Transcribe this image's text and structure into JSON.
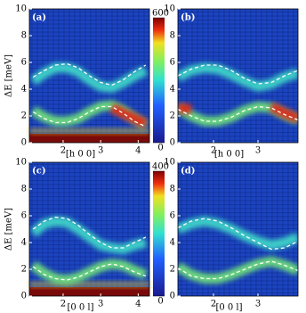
{
  "chart_data": [
    {
      "type": "line",
      "label": "(a)",
      "xlabel": "[h 0 0]",
      "ylabel": "ΔE [meV]",
      "xlim": [
        1.1,
        4.3
      ],
      "xticks": [
        2,
        3,
        4
      ],
      "ylim": [
        0,
        10
      ],
      "yticks": [
        0,
        2,
        4,
        6,
        8,
        10
      ],
      "elastic": true,
      "colorbar": {
        "lim": [
          0,
          600
        ],
        "ticks": [
          0,
          600
        ]
      },
      "x": [
        1.2,
        1.5,
        1.8,
        2.1,
        2.4,
        2.7,
        3.0,
        3.3,
        3.6,
        3.9,
        4.2
      ],
      "series": [
        {
          "color": "#3fd6c8",
          "dashed": false,
          "values": [
            4.6,
            5.2,
            5.6,
            5.6,
            5.3,
            4.7,
            4.2,
            4.1,
            4.5,
            5.0,
            5.4
          ]
        },
        {
          "color": "#6fe07a",
          "dashed": false,
          "values": [
            2.4,
            1.9,
            1.6,
            1.6,
            1.8,
            2.3,
            2.7,
            2.8,
            2.4,
            1.8,
            1.3
          ]
        },
        {
          "color": "#e02818",
          "dashed": false,
          "values": [
            null,
            null,
            null,
            null,
            null,
            null,
            null,
            2.6,
            2.2,
            1.8,
            1.4
          ]
        },
        {
          "color": "#ffffff",
          "dashed": true,
          "values": [
            4.9,
            5.4,
            5.8,
            5.9,
            5.6,
            5.0,
            4.5,
            4.3,
            4.7,
            5.3,
            5.8
          ]
        },
        {
          "color": "#ffffff",
          "dashed": true,
          "values": [
            2.3,
            1.8,
            1.5,
            1.5,
            1.8,
            2.3,
            2.7,
            2.7,
            2.2,
            1.6,
            1.2
          ]
        }
      ]
    },
    {
      "type": "line",
      "label": "(b)",
      "xlabel": "[h 0 0]",
      "xlim": [
        1.2,
        3.9
      ],
      "xticks": [
        2,
        3
      ],
      "ylim": [
        0,
        10
      ],
      "yticks": [
        0,
        2,
        4,
        6,
        8,
        10
      ],
      "elastic": false,
      "x": [
        1.2,
        1.5,
        1.8,
        2.1,
        2.4,
        2.7,
        3.0,
        3.3,
        3.6,
        3.9
      ],
      "series": [
        {
          "color": "#3fd6c8",
          "dashed": false,
          "values": [
            4.9,
            5.4,
            5.6,
            5.5,
            5.1,
            4.6,
            4.2,
            4.4,
            4.9,
            5.2
          ]
        },
        {
          "color": "#6fe07a",
          "dashed": false,
          "values": [
            2.6,
            2.0,
            1.6,
            1.6,
            1.9,
            2.4,
            2.7,
            2.6,
            2.1,
            1.7
          ]
        },
        {
          "color": "#e02818",
          "dashed": false,
          "values": [
            2.6,
            2.5,
            null,
            null,
            null,
            null,
            null,
            2.7,
            2.2,
            1.8
          ]
        },
        {
          "color": "#ffffff",
          "dashed": true,
          "values": [
            5.0,
            5.5,
            5.8,
            5.8,
            5.4,
            4.8,
            4.4,
            4.5,
            5.0,
            5.4
          ]
        },
        {
          "color": "#ffffff",
          "dashed": true,
          "values": [
            2.5,
            2.0,
            1.6,
            1.6,
            1.9,
            2.4,
            2.7,
            2.6,
            2.1,
            1.7
          ]
        }
      ]
    },
    {
      "type": "line",
      "label": "(c)",
      "xlabel": "[0 0 l]",
      "ylabel": "ΔE [meV]",
      "xlim": [
        1.1,
        4.3
      ],
      "xticks": [
        2,
        3,
        4
      ],
      "ylim": [
        0,
        10
      ],
      "yticks": [
        0,
        2,
        4,
        6,
        8,
        10
      ],
      "elastic": true,
      "colorbar": {
        "lim": [
          0,
          400
        ],
        "ticks": [
          0,
          400
        ]
      },
      "x": [
        1.2,
        1.5,
        1.8,
        2.1,
        2.4,
        2.7,
        3.0,
        3.3,
        3.6,
        3.9,
        4.2
      ],
      "series": [
        {
          "color": "#3fd6c8",
          "dashed": false,
          "values": [
            4.7,
            5.4,
            5.6,
            5.5,
            5.0,
            4.4,
            3.8,
            3.6,
            3.5,
            3.8,
            4.0
          ]
        },
        {
          "color": "#6fe07a",
          "dashed": false,
          "values": [
            2.3,
            1.7,
            1.3,
            1.2,
            1.4,
            1.8,
            2.2,
            2.4,
            2.3,
            1.9,
            1.6
          ]
        },
        {
          "color": "#ffffff",
          "dashed": true,
          "values": [
            5.0,
            5.6,
            5.9,
            5.8,
            5.3,
            4.6,
            4.0,
            3.6,
            3.6,
            4.0,
            4.4
          ]
        },
        {
          "color": "#ffffff",
          "dashed": true,
          "values": [
            2.2,
            1.6,
            1.3,
            1.2,
            1.4,
            1.8,
            2.2,
            2.4,
            2.2,
            1.8,
            1.5
          ]
        }
      ]
    },
    {
      "type": "line",
      "label": "(d)",
      "xlabel": "[0 0 l]",
      "xlim": [
        1.2,
        3.9
      ],
      "xticks": [
        2,
        3
      ],
      "ylim": [
        0,
        10
      ],
      "yticks": [
        0,
        2,
        4,
        6,
        8,
        10
      ],
      "elastic": false,
      "x": [
        1.2,
        1.5,
        1.8,
        2.1,
        2.4,
        2.7,
        3.0,
        3.3,
        3.6,
        3.9
      ],
      "series": [
        {
          "color": "#3fd6c8",
          "dashed": false,
          "values": [
            5.0,
            5.4,
            5.6,
            5.4,
            5.0,
            4.5,
            4.1,
            3.8,
            4.0,
            4.4
          ]
        },
        {
          "color": "#6fe07a",
          "dashed": false,
          "values": [
            2.2,
            1.6,
            1.3,
            1.3,
            1.6,
            2.0,
            2.4,
            2.6,
            2.3,
            1.9
          ]
        },
        {
          "color": "#ffffff",
          "dashed": true,
          "values": [
            5.1,
            5.6,
            5.8,
            5.6,
            5.1,
            4.5,
            4.0,
            3.5,
            3.6,
            4.1
          ]
        },
        {
          "color": "#ffffff",
          "dashed": true,
          "values": [
            2.1,
            1.5,
            1.3,
            1.3,
            1.6,
            2.0,
            2.4,
            2.6,
            2.3,
            1.9
          ]
        }
      ]
    }
  ]
}
